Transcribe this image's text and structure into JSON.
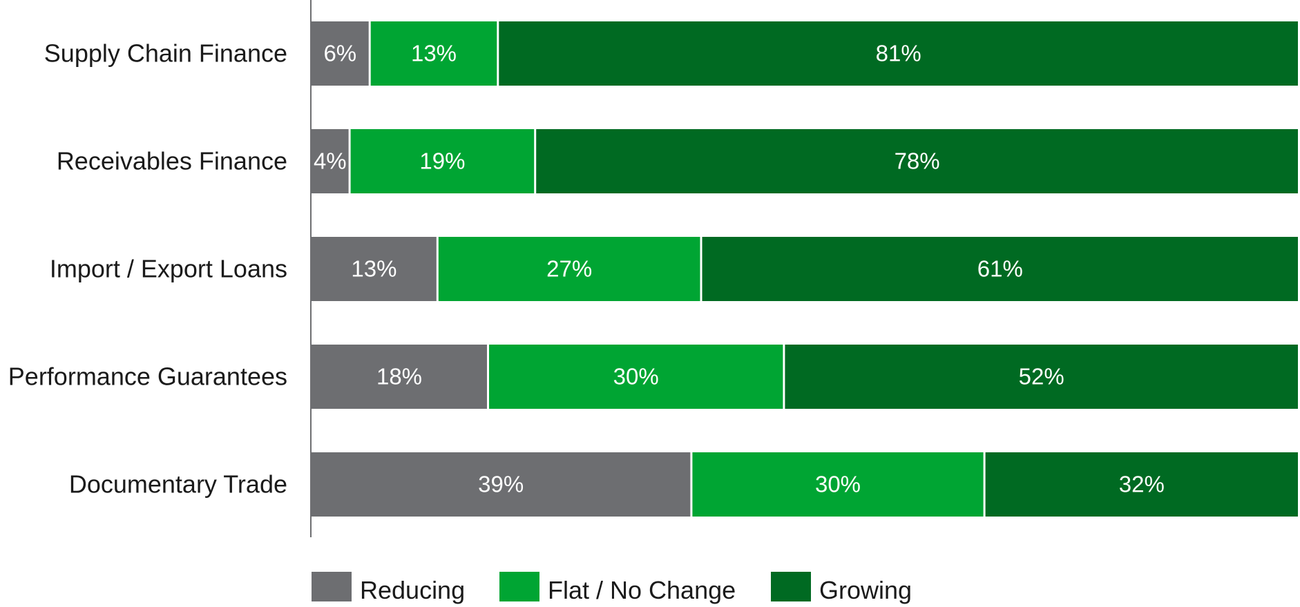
{
  "chart_data": {
    "type": "bar",
    "orientation": "horizontal",
    "stacked": true,
    "categories": [
      "Supply Chain Finance",
      "Receivables Finance",
      "Import / Export Loans",
      "Performance Guarantees",
      "Documentary Trade"
    ],
    "series": [
      {
        "name": "Reducing",
        "color": "#6d6e71",
        "values": [
          6,
          4,
          13,
          18,
          39
        ],
        "labels": [
          "6%",
          "4%",
          "13%",
          "18%",
          "39%"
        ]
      },
      {
        "name": "Flat / No Change",
        "color": "#00a533",
        "values": [
          13,
          19,
          27,
          30,
          30
        ],
        "labels": [
          "13%",
          "19%",
          "27%",
          "30%",
          "30%"
        ]
      },
      {
        "name": "Growing",
        "color": "#006a22",
        "values": [
          81,
          78,
          61,
          52,
          32
        ],
        "labels": [
          "81%",
          "78%",
          "61%",
          "52%",
          "32%"
        ]
      }
    ],
    "value_unit": "%",
    "grid": false,
    "legend_position": "bottom"
  }
}
